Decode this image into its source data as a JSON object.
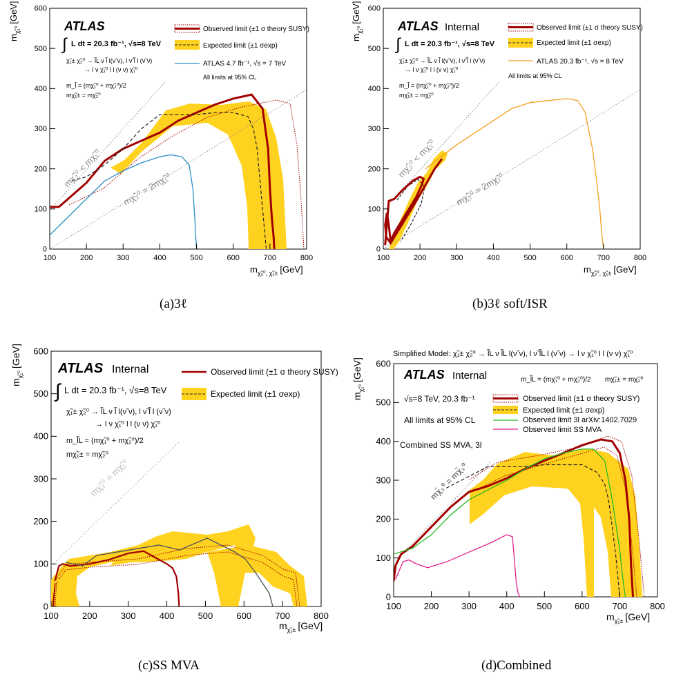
{
  "panels": [
    {
      "id": "a",
      "caption": "(a)3ℓ",
      "atlas": "ATLAS",
      "atlas_suffix": "",
      "xlabel": "[GeV]",
      "ylabel": "[GeV]",
      "x_ticks": [
        "100",
        "200",
        "300",
        "400",
        "500",
        "600",
        "700",
        "800"
      ],
      "y_ticks": [
        "0",
        "100",
        "200",
        "300",
        "400",
        "500",
        "600"
      ],
      "lumi_text": "L dt = 20.3 fb⁻¹, √s=8 TeV",
      "process_lines": [
        "χ̃₁± χ̃₂⁰ → l̃L ν l̃ l(ν̃ ν), l ν̃ l̃ l (ν̃ ν)",
        "→ l ν χ̃₁⁰ l l (ν ν) χ̃₁⁰",
        "m_l̃ = (mχ̃₁⁰ + mχ̃₂⁰)/2",
        "mχ̃₁± = mχ̃₂⁰"
      ],
      "legend": [
        "Observed limit (±1 σ theory SUSY)",
        "Expected limit (±1 σexp)",
        "ATLAS 4.7 fb⁻¹, √s = 7 TeV"
      ],
      "note": "All limits at 95% CL",
      "diag1_label": "mχ̃₂⁰ < mχ̃₁⁰",
      "diag2_label": "mχ̃₂⁰ = 2mχ̃₁⁰"
    },
    {
      "id": "b",
      "caption": "(b)3ℓ soft/ISR",
      "atlas": "ATLAS",
      "atlas_suffix": "Internal",
      "xlabel": "[GeV]",
      "ylabel": "[GeV]",
      "x_ticks": [
        "100",
        "200",
        "300",
        "400",
        "500",
        "600",
        "700",
        "800"
      ],
      "y_ticks": [
        "0",
        "100",
        "200",
        "300",
        "400",
        "500",
        "600"
      ],
      "lumi_text": "L dt = 20.3 fb⁻¹, √s=8 TeV",
      "process_lines": [
        "χ̃₁± χ̃₂⁰ → l̃L ν l̃ l(ν̃ ν), l ν̃ l̃ l (ν̃ ν)",
        "→ l ν χ̃₁⁰ l l (ν ν) χ̃₁⁰",
        "m_l̃ = (mχ̃₁⁰ + mχ̃₂⁰)/2",
        "mχ̃₁± = mχ̃₂⁰"
      ],
      "legend": [
        "Observed limit (±1 σ theory SUSY)",
        "Expected limit (±1 σexp)",
        "ATLAS 20.3 fb⁻¹, √s = 8 TeV"
      ],
      "note": "All limits at 95% CL",
      "diag1_label": "mχ̃₂⁰ < mχ̃₁⁰",
      "diag2_label": "mχ̃₂⁰ = 2mχ̃₁⁰"
    },
    {
      "id": "c",
      "caption": "(c)SS MVA",
      "atlas": "ATLAS",
      "atlas_suffix": "Internal",
      "xlabel": "[GeV]",
      "ylabel": "[GeV]",
      "x_ticks": [
        "100",
        "200",
        "300",
        "400",
        "500",
        "600",
        "700",
        "800"
      ],
      "y_ticks": [
        "0",
        "100",
        "200",
        "300",
        "400",
        "500",
        "600"
      ],
      "lumi_text": "L dt = 20.3 fb⁻¹, √s=8 TeV",
      "process_lines": [
        "χ̃₁± χ̃₂⁰ → l̃L ν l̃ l(ν̃ ν), l ν̃ l̃ l (ν̃ ν)",
        "→ l ν χ̃₁⁰ l l (ν ν) χ̃₁⁰",
        "m_l̃L = (mχ̃₁⁰ + mχ̃₂⁰)/2",
        "mχ̃₁± = mχ̃₂⁰"
      ],
      "legend": [
        "Observed limit (±1 σ theory SUSY)",
        "Expected limit (±1 σexp)"
      ],
      "diag1_label": "mχ̃₂⁰ = mχ̃₁⁰"
    },
    {
      "id": "d",
      "caption": "(d)Combined",
      "title": "Simplified Model: χ̃₁± χ̃₂⁰ → l̃L ν l̃L l(ν̃ ν), l ν̃ l̃L l (ν̃ ν) → l ν χ̃₁⁰ l l (ν ν) χ̃₁⁰",
      "atlas": "ATLAS",
      "atlas_suffix": "Internal",
      "xlabel": "[GeV]",
      "ylabel": "[GeV]",
      "x_ticks": [
        "100",
        "200",
        "300",
        "400",
        "500",
        "600",
        "700",
        "800"
      ],
      "y_ticks": [
        "0",
        "100",
        "200",
        "300",
        "400",
        "500",
        "600"
      ],
      "mass_rel1": "m_l̃L = (mχ̃₁⁰ + mχ̃₂⁰)/2",
      "mass_rel2": "mχ̃₁± = mχ̃₂⁰",
      "lumi_text": "√s=8 TeV, 20.3 fb⁻¹",
      "note": "All limits at 95% CL",
      "combined_label": "Combined SS MVA, 3l",
      "legend": [
        "Observed limit (±1 σ theory SUSY)",
        "Expected limit (±1 σexp)",
        "Observed limit 3l   arXiv:1402.7029",
        "Observed limit SS MVA"
      ],
      "diag1_label": "mχ̃₂⁰ = mχ̃₁⁰"
    }
  ],
  "colors": {
    "observed": "#a00000",
    "expected_band": "#ffd21f",
    "expected_line": "#222222",
    "atlas7": "#2a8ec8",
    "atlas8": "#f5a020",
    "obs3l": "#22bb22",
    "ssmva": "#e0208c",
    "dotted": "#888888"
  },
  "chart_data": [
    {
      "type": "line",
      "panel": "a",
      "xlim": [
        100,
        800
      ],
      "ylim": [
        0,
        600
      ],
      "series": [
        {
          "name": "Observed limit",
          "x": [
            100,
            125,
            150,
            200,
            250,
            300,
            350,
            400,
            450,
            500,
            550,
            600,
            650,
            680,
            695,
            700,
            705,
            710,
            712
          ],
          "y": [
            105,
            105,
            125,
            165,
            220,
            250,
            270,
            290,
            320,
            340,
            360,
            375,
            385,
            350,
            250,
            150,
            80,
            30,
            0
          ]
        },
        {
          "name": "Expected limit",
          "x": [
            160,
            200,
            250,
            300,
            350,
            400,
            450,
            500,
            550,
            600,
            640,
            655,
            665,
            670,
            680,
            690
          ],
          "y": [
            170,
            180,
            210,
            250,
            300,
            335,
            335,
            335,
            340,
            340,
            330,
            300,
            250,
            200,
            100,
            0
          ]
        },
        {
          "name": "ATLAS 4.7 fb-1, sqrt(s) = 7 TeV",
          "x": [
            100,
            150,
            200,
            250,
            300,
            350,
            400,
            430,
            460,
            480,
            490,
            495,
            498,
            500
          ],
          "y": [
            35,
            80,
            125,
            170,
            195,
            215,
            230,
            235,
            230,
            210,
            150,
            80,
            30,
            0
          ]
        }
      ]
    },
    {
      "type": "line",
      "panel": "b",
      "xlim": [
        100,
        800
      ],
      "ylim": [
        0,
        600
      ],
      "series": [
        {
          "name": "Observed limit",
          "x": [
            105,
            115,
            130,
            150,
            180,
            200,
            210,
            205,
            190,
            170,
            150,
            130,
            120,
            115,
            110,
            105,
            108,
            120,
            150,
            190,
            215,
            240,
            260
          ],
          "y": [
            10,
            120,
            125,
            145,
            170,
            180,
            175,
            160,
            130,
            100,
            70,
            40,
            20,
            60,
            90,
            60,
            30,
            15,
            60,
            120,
            160,
            200,
            225
          ]
        },
        {
          "name": "ATLAS 20.3 fb-1, sqrt(s) = 8 TeV",
          "x": [
            215,
            250,
            300,
            350,
            400,
            450,
            500,
            550,
            600,
            630,
            650,
            670,
            680,
            690,
            695,
            700
          ],
          "y": [
            200,
            225,
            260,
            290,
            320,
            350,
            365,
            370,
            375,
            370,
            340,
            250,
            180,
            100,
            40,
            0
          ]
        }
      ]
    },
    {
      "type": "line",
      "panel": "c",
      "xlim": [
        100,
        800
      ],
      "ylim": [
        0,
        600
      ],
      "series": [
        {
          "name": "Observed limit",
          "x": [
            105,
            110,
            120,
            130,
            150,
            200,
            250,
            300,
            340,
            360,
            380,
            400,
            415,
            425,
            430,
            432
          ],
          "y": [
            0,
            60,
            95,
            100,
            95,
            100,
            110,
            125,
            130,
            120,
            110,
            100,
            90,
            70,
            30,
            0
          ]
        }
      ]
    },
    {
      "type": "line",
      "panel": "d",
      "xlim": [
        100,
        800
      ],
      "ylim": [
        0,
        600
      ],
      "series": [
        {
          "name": "Observed limit",
          "x": [
            100,
            105,
            120,
            150,
            200,
            250,
            300,
            350,
            400,
            450,
            500,
            550,
            600,
            650,
            680,
            700,
            715,
            725,
            730,
            735
          ],
          "y": [
            40,
            80,
            110,
            130,
            180,
            230,
            270,
            285,
            305,
            330,
            350,
            370,
            390,
            405,
            400,
            370,
            300,
            200,
            80,
            0
          ]
        },
        {
          "name": "Expected limit",
          "x": [
            240,
            300,
            350,
            400,
            450,
            500,
            550,
            600,
            640,
            660,
            670,
            680,
            690,
            700
          ],
          "y": [
            280,
            310,
            335,
            335,
            335,
            340,
            340,
            340,
            320,
            290,
            250,
            180,
            100,
            0
          ]
        },
        {
          "name": "Observed limit 3l",
          "x": [
            100,
            150,
            200,
            250,
            300,
            350,
            400,
            450,
            500,
            550,
            600,
            630,
            660,
            680,
            700,
            710,
            715
          ],
          "y": [
            110,
            125,
            160,
            210,
            250,
            275,
            300,
            330,
            355,
            370,
            380,
            380,
            350,
            250,
            120,
            30,
            0
          ]
        },
        {
          "name": "Observed limit SS MVA",
          "x": [
            105,
            125,
            140,
            160,
            190,
            240,
            300,
            360,
            400,
            415,
            420,
            425,
            430,
            435
          ],
          "y": [
            45,
            90,
            95,
            85,
            75,
            90,
            115,
            140,
            160,
            155,
            100,
            40,
            10,
            0
          ]
        }
      ]
    }
  ]
}
